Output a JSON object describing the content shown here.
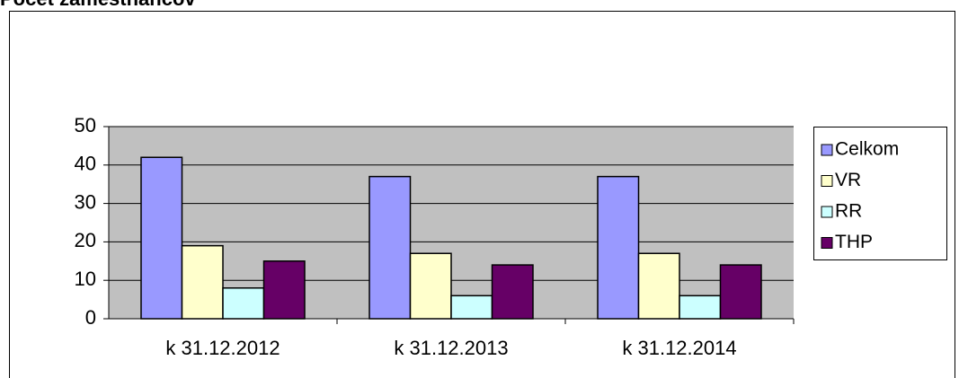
{
  "chart_data": {
    "type": "bar",
    "title": "Počet zamestnancov",
    "categories": [
      "k 31.12.2012",
      "k 31.12.2013",
      "k 31.12.2014"
    ],
    "series": [
      {
        "name": "Celkom",
        "color": "#9999ff",
        "values": [
          42,
          37,
          37
        ]
      },
      {
        "name": "VR",
        "color": "#ffffcc",
        "values": [
          19,
          17,
          17
        ]
      },
      {
        "name": "RR",
        "color": "#ccffff",
        "values": [
          8,
          6,
          6
        ]
      },
      {
        "name": "THP",
        "color": "#660066",
        "values": [
          15,
          14,
          14
        ]
      }
    ],
    "ylim": [
      0,
      50
    ],
    "yticks": [
      0,
      10,
      20,
      30,
      40,
      50
    ],
    "grid": true,
    "legend": "right"
  }
}
